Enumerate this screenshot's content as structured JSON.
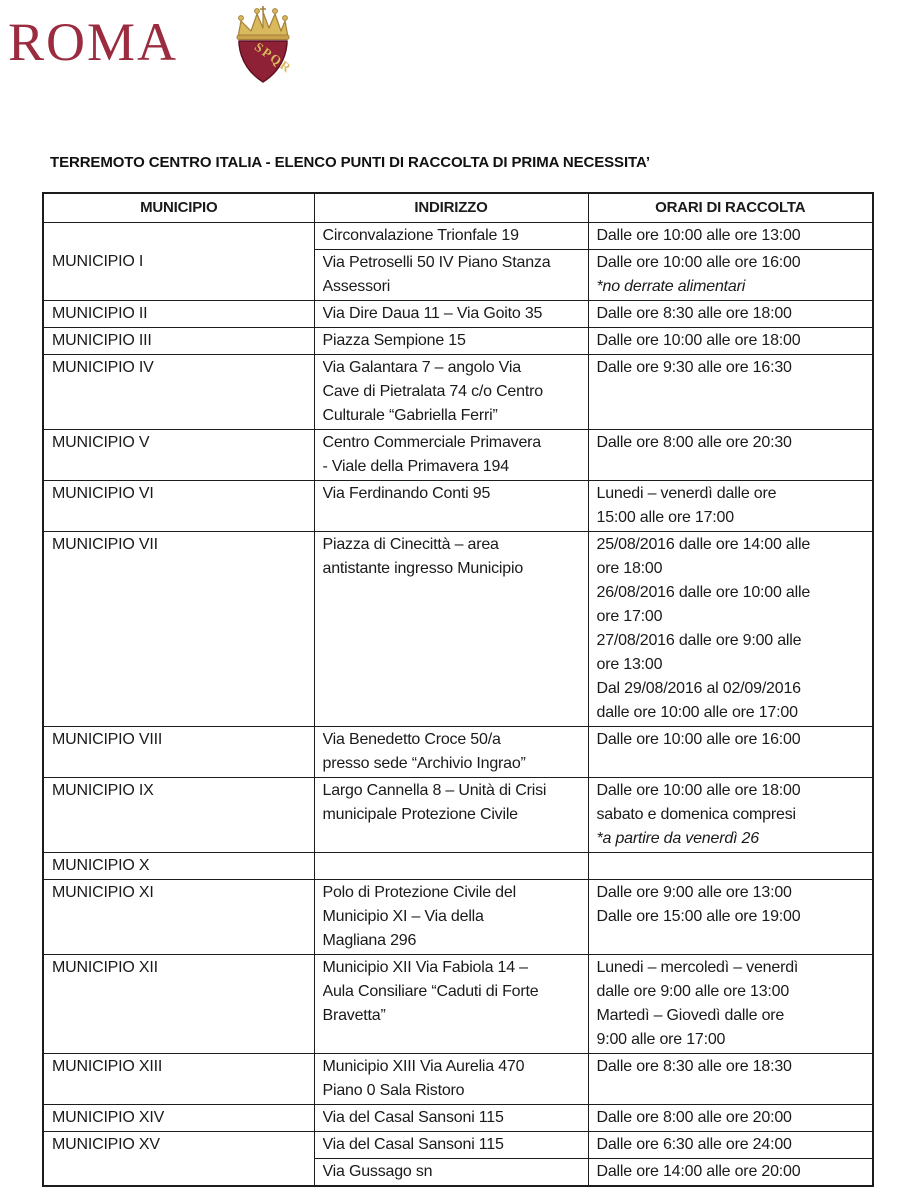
{
  "header": {
    "logo_text": "ROMA",
    "shield_text": "SPQR"
  },
  "title": "TERREMOTO CENTRO ITALIA - ELENCO PUNTI DI RACCOLTA DI PRIMA NECESSITA’",
  "colors": {
    "brand_red": "#9b2b3f",
    "shield_red": "#8e2135",
    "gold": "#c9a24b",
    "border": "#1c1c1c",
    "text": "#1a1a1a"
  },
  "table": {
    "columns": [
      "MUNICIPIO",
      "INDIRIZZO",
      "ORARI DI RACCOLTA"
    ],
    "groups": [
      {
        "municipio": "MUNICIPIO I",
        "rows": [
          {
            "indirizzo": [
              {
                "t": "Circonvalazione Trionfale 19"
              }
            ],
            "orari": [
              {
                "t": "Dalle ore 10:00 alle ore 13:00"
              }
            ]
          },
          {
            "indirizzo": [
              {
                "t": "Via Petroselli 50 IV Piano Stanza"
              },
              {
                "t": "Assessori"
              }
            ],
            "orari": [
              {
                "t": "Dalle ore 10:00 alle ore 16:00"
              },
              {
                "t": "*no derrate alimentari",
                "i": true
              }
            ]
          }
        ]
      },
      {
        "municipio": "MUNICIPIO II",
        "rows": [
          {
            "indirizzo": [
              {
                "t": "Via Dire Daua 11 – Via Goito 35"
              }
            ],
            "orari": [
              {
                "t": "Dalle ore 8:30 alle ore 18:00"
              }
            ]
          }
        ]
      },
      {
        "municipio": "MUNICIPIO III",
        "rows": [
          {
            "indirizzo": [
              {
                "t": "Piazza Sempione 15"
              }
            ],
            "orari": [
              {
                "t": "Dalle ore 10:00 alle ore 18:00"
              }
            ]
          }
        ]
      },
      {
        "municipio": "MUNICIPIO IV",
        "rows": [
          {
            "indirizzo": [
              {
                "t": "Via Galantara 7 – angolo Via"
              },
              {
                "t": "Cave di Pietralata 74 c/o Centro"
              },
              {
                "t": "Culturale “Gabriella Ferri”"
              }
            ],
            "orari": [
              {
                "t": "Dalle ore 9:30 alle ore 16:30"
              }
            ]
          }
        ]
      },
      {
        "municipio": "MUNICIPIO V",
        "rows": [
          {
            "indirizzo": [
              {
                "t": "Centro Commerciale Primavera"
              },
              {
                "t": "-  Viale della Primavera 194"
              }
            ],
            "orari": [
              {
                "t": "Dalle ore 8:00 alle ore 20:30"
              }
            ]
          }
        ]
      },
      {
        "municipio": "MUNICIPIO VI",
        "rows": [
          {
            "indirizzo": [
              {
                "t": "Via Ferdinando Conti 95"
              }
            ],
            "orari": [
              {
                "t": "Lunedi – venerdì dalle ore"
              },
              {
                "t": "15:00 alle ore 17:00"
              }
            ]
          }
        ]
      },
      {
        "municipio": "MUNICIPIO VII",
        "rows": [
          {
            "indirizzo": [
              {
                "t": "Piazza di Cinecittà – area"
              },
              {
                "t": "antistante ingresso Municipio"
              }
            ],
            "orari": [
              {
                "t": "25/08/2016 dalle ore 14:00 alle"
              },
              {
                "t": "ore 18:00"
              },
              {
                "t": "26/08/2016 dalle ore 10:00 alle"
              },
              {
                "t": "ore 17:00"
              },
              {
                "t": "27/08/2016 dalle ore 9:00 alle"
              },
              {
                "t": "ore 13:00"
              },
              {
                "t": "Dal 29/08/2016 al 02/09/2016"
              },
              {
                "t": "dalle ore 10:00 alle ore 17:00"
              }
            ]
          }
        ]
      },
      {
        "municipio": "MUNICIPIO VIII",
        "rows": [
          {
            "indirizzo": [
              {
                "t": "Via Benedetto Croce 50/a"
              },
              {
                "t": "presso sede “Archivio Ingrao”"
              }
            ],
            "orari": [
              {
                "t": "Dalle ore 10:00 alle ore 16:00"
              }
            ]
          }
        ]
      },
      {
        "municipio": "MUNICIPIO IX",
        "rows": [
          {
            "indirizzo": [
              {
                "t": "Largo Cannella 8 – Unità di Crisi"
              },
              {
                "t": "municipale Protezione Civile"
              }
            ],
            "orari": [
              {
                "t": "Dalle ore 10:00 alle ore 18:00"
              },
              {
                "t": "sabato e domenica compresi"
              },
              {
                "t": "*a partire da venerdì 26",
                "i": true
              }
            ]
          }
        ]
      },
      {
        "municipio": "MUNICIPIO X",
        "rows": [
          {
            "indirizzo": [],
            "orari": []
          }
        ]
      },
      {
        "municipio": "MUNICIPIO XI",
        "rows": [
          {
            "indirizzo": [
              {
                "t": "Polo di Protezione Civile del"
              },
              {
                "t": "Municipio XI – Via della"
              },
              {
                "t": "Magliana 296"
              }
            ],
            "orari": [
              {
                "t": "Dalle ore 9:00 alle ore 13:00"
              },
              {
                "t": "Dalle ore 15:00 alle ore 19:00"
              }
            ]
          }
        ]
      },
      {
        "municipio": "MUNICIPIO XII",
        "rows": [
          {
            "indirizzo": [
              {
                "t": "Municipio XII Via Fabiola 14 –"
              },
              {
                "t": "Aula Consiliare “Caduti di Forte"
              },
              {
                "t": "Bravetta”"
              }
            ],
            "orari": [
              {
                "t": "Lunedi – mercoledì – venerdì"
              },
              {
                "t": "dalle ore 9:00 alle ore 13:00"
              },
              {
                "t": "Martedì – Giovedì dalle ore"
              },
              {
                "t": "9:00 alle ore 17:00"
              }
            ]
          }
        ]
      },
      {
        "municipio": "MUNICIPIO XIII",
        "rows": [
          {
            "indirizzo": [
              {
                "t": "Municipio XIII Via Aurelia 470"
              },
              {
                "t": "Piano 0 Sala Ristoro"
              }
            ],
            "orari": [
              {
                "t": "Dalle ore 8:30 alle ore 18:30"
              }
            ]
          }
        ]
      },
      {
        "municipio": "MUNICIPIO XIV",
        "rows": [
          {
            "indirizzo": [
              {
                "t": "Via del Casal Sansoni 115"
              }
            ],
            "orari": [
              {
                "t": "Dalle ore 8:00 alle ore 20:00"
              }
            ]
          }
        ]
      },
      {
        "municipio": "MUNICIPIO XV",
        "rows": [
          {
            "indirizzo": [
              {
                "t": "Via del Casal Sansoni 115"
              }
            ],
            "orari": [
              {
                "t": "Dalle ore 6:30 alle ore 24:00"
              }
            ]
          },
          {
            "indirizzo": [
              {
                "t": "Via Gussago sn"
              }
            ],
            "orari": [
              {
                "t": "Dalle ore 14:00 alle ore 20:00"
              }
            ]
          }
        ]
      }
    ]
  }
}
